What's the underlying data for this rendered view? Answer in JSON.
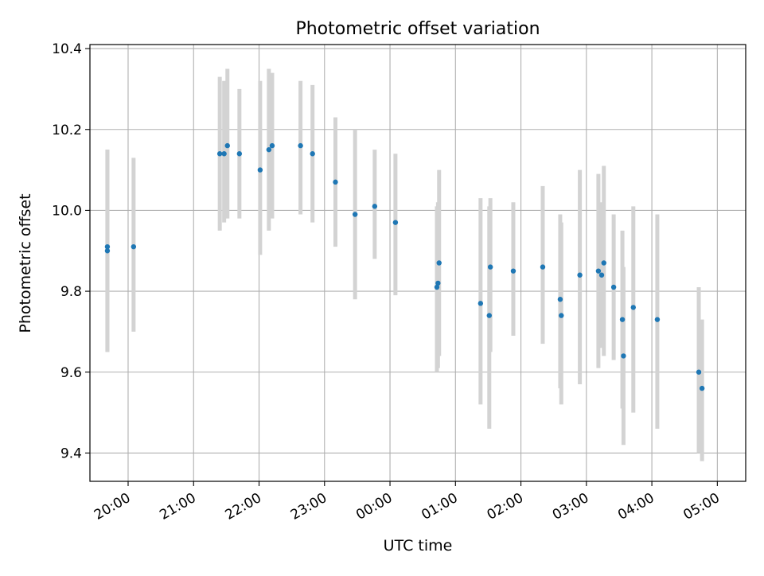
{
  "chart_data": {
    "type": "scatter",
    "title": "Photometric offset variation",
    "xlabel": "UTC time",
    "ylabel": "Photometric offset",
    "ylim": [
      9.33,
      10.41
    ],
    "xlim": [
      "2023-01-01T19:25",
      "2023-01-02T05:26"
    ],
    "y_ticks": [
      9.4,
      9.6,
      9.8,
      10.0,
      10.2,
      10.4
    ],
    "x_ticks": [
      {
        "t": "2023-01-01T20:00",
        "label": "20:00"
      },
      {
        "t": "2023-01-01T21:00",
        "label": "21:00"
      },
      {
        "t": "2023-01-01T22:00",
        "label": "22:00"
      },
      {
        "t": "2023-01-01T23:00",
        "label": "23:00"
      },
      {
        "t": "2023-01-02T00:00",
        "label": "00:00"
      },
      {
        "t": "2023-01-02T01:00",
        "label": "01:00"
      },
      {
        "t": "2023-01-02T02:00",
        "label": "02:00"
      },
      {
        "t": "2023-01-02T03:00",
        "label": "03:00"
      },
      {
        "t": "2023-01-02T04:00",
        "label": "04:00"
      },
      {
        "t": "2023-01-02T05:00",
        "label": "05:00"
      }
    ],
    "grid": true,
    "marker_color": "#1f77b4",
    "errorbar_color": "#d3d3d3",
    "points": [
      {
        "t": "2023-01-01T19:41",
        "y": 9.91,
        "lo": 9.65,
        "hi": 10.15
      },
      {
        "t": "2023-01-01T19:41",
        "y": 9.9,
        "lo": 9.65,
        "hi": 10.15
      },
      {
        "t": "2023-01-01T20:05",
        "y": 9.91,
        "lo": 9.7,
        "hi": 10.13
      },
      {
        "t": "2023-01-01T21:24",
        "y": 10.14,
        "lo": 9.95,
        "hi": 10.33
      },
      {
        "t": "2023-01-01T21:28",
        "y": 10.14,
        "lo": 9.97,
        "hi": 10.32
      },
      {
        "t": "2023-01-01T21:31",
        "y": 10.16,
        "lo": 9.98,
        "hi": 10.35
      },
      {
        "t": "2023-01-01T21:42",
        "y": 10.14,
        "lo": 9.98,
        "hi": 10.3
      },
      {
        "t": "2023-01-01T22:01",
        "y": 10.1,
        "lo": 9.89,
        "hi": 10.32
      },
      {
        "t": "2023-01-01T22:09",
        "y": 10.15,
        "lo": 9.95,
        "hi": 10.35
      },
      {
        "t": "2023-01-01T22:12",
        "y": 10.16,
        "lo": 9.98,
        "hi": 10.34
      },
      {
        "t": "2023-01-01T22:38",
        "y": 10.16,
        "lo": 9.99,
        "hi": 10.32
      },
      {
        "t": "2023-01-01T22:49",
        "y": 10.14,
        "lo": 9.97,
        "hi": 10.31
      },
      {
        "t": "2023-01-01T23:10",
        "y": 10.07,
        "lo": 9.91,
        "hi": 10.23
      },
      {
        "t": "2023-01-01T23:28",
        "y": 9.99,
        "lo": 9.78,
        "hi": 10.2
      },
      {
        "t": "2023-01-01T23:46",
        "y": 10.01,
        "lo": 9.88,
        "hi": 10.15
      },
      {
        "t": "2023-01-02T00:05",
        "y": 9.97,
        "lo": 9.79,
        "hi": 10.14
      },
      {
        "t": "2023-01-02T00:43",
        "y": 9.81,
        "lo": 9.6,
        "hi": 10.01
      },
      {
        "t": "2023-01-02T00:44",
        "y": 9.82,
        "lo": 9.61,
        "hi": 10.02
      },
      {
        "t": "2023-01-02T00:45",
        "y": 9.87,
        "lo": 9.64,
        "hi": 10.1
      },
      {
        "t": "2023-01-02T01:23",
        "y": 9.77,
        "lo": 9.52,
        "hi": 10.03
      },
      {
        "t": "2023-01-02T01:31",
        "y": 9.74,
        "lo": 9.46,
        "hi": 10.01
      },
      {
        "t": "2023-01-02T01:32",
        "y": 9.86,
        "lo": 9.65,
        "hi": 10.03
      },
      {
        "t": "2023-01-02T01:53",
        "y": 9.85,
        "lo": 9.69,
        "hi": 10.02
      },
      {
        "t": "2023-01-02T02:20",
        "y": 9.86,
        "lo": 9.67,
        "hi": 10.06
      },
      {
        "t": "2023-01-02T02:36",
        "y": 9.78,
        "lo": 9.56,
        "hi": 9.99
      },
      {
        "t": "2023-01-02T02:37",
        "y": 9.74,
        "lo": 9.52,
        "hi": 9.97
      },
      {
        "t": "2023-01-02T02:54",
        "y": 9.84,
        "lo": 9.57,
        "hi": 10.1
      },
      {
        "t": "2023-01-02T03:11",
        "y": 9.85,
        "lo": 9.61,
        "hi": 10.09
      },
      {
        "t": "2023-01-02T03:14",
        "y": 9.84,
        "lo": 9.66,
        "hi": 10.02
      },
      {
        "t": "2023-01-02T03:16",
        "y": 9.87,
        "lo": 9.64,
        "hi": 10.11
      },
      {
        "t": "2023-01-02T03:25",
        "y": 9.81,
        "lo": 9.63,
        "hi": 9.99
      },
      {
        "t": "2023-01-02T03:33",
        "y": 9.73,
        "lo": 9.51,
        "hi": 9.95
      },
      {
        "t": "2023-01-02T03:34",
        "y": 9.64,
        "lo": 9.42,
        "hi": 9.86
      },
      {
        "t": "2023-01-02T03:43",
        "y": 9.76,
        "lo": 9.5,
        "hi": 10.01
      },
      {
        "t": "2023-01-02T04:05",
        "y": 9.73,
        "lo": 9.46,
        "hi": 9.99
      },
      {
        "t": "2023-01-02T04:43",
        "y": 9.6,
        "lo": 9.4,
        "hi": 9.81
      },
      {
        "t": "2023-01-02T04:46",
        "y": 9.56,
        "lo": 9.38,
        "hi": 9.73
      }
    ]
  }
}
